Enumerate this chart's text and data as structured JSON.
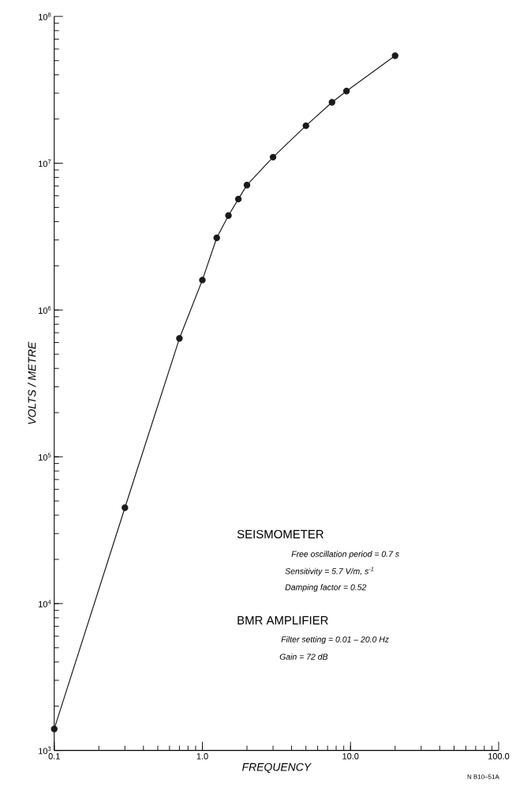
{
  "chart_data": {
    "type": "line",
    "xlabel": "FREQUENCY",
    "ylabel": "VOLTS / METRE",
    "x": [
      0.1,
      0.3,
      0.7,
      1.0,
      1.25,
      1.5,
      1.75,
      2.0,
      3.0,
      5.0,
      7.5,
      9.4,
      20
    ],
    "series": [
      {
        "color": "#1a1a1a",
        "values": [
          1400,
          45000,
          640000,
          1600000,
          3100000,
          4400000,
          5700000,
          7100000,
          11000000,
          18000000,
          26000000,
          31000000,
          54000000
        ]
      }
    ],
    "log": "xy",
    "marker": "circle",
    "line_style": "solid",
    "xlim": [
      0.1,
      100
    ],
    "ylim": [
      1000,
      100000000
    ],
    "xticks": [
      {
        "value": 0.1,
        "label": "0.1"
      },
      {
        "value": 1,
        "label": "1.0"
      },
      {
        "value": 10,
        "label": "10.0"
      },
      {
        "value": 100,
        "label": "100.0"
      }
    ],
    "yticks": [
      {
        "value": 1000,
        "label": "10$^{3}$"
      },
      {
        "value": 10000,
        "label": "10$^{4}$"
      },
      {
        "value": 100000,
        "label": "10$^{5}$"
      },
      {
        "value": 1000000,
        "label": "10$^{6}$"
      },
      {
        "value": 10000000,
        "label": "10$^{7}$"
      },
      {
        "value": 100000000,
        "label": "10$^{8}$"
      }
    ],
    "annotations": [
      "SEISMOMETER",
      "Free oscillation period = 0.7 s",
      "Sensitivity = 5.7 V/m, s$^{-1}$",
      "Damping factor = 0.52",
      "BMR AMPLIFIER",
      "Filter setting = 0.01 – 20.0 Hz",
      "Gain = 72 dB",
      "N B10–51A"
    ]
  }
}
